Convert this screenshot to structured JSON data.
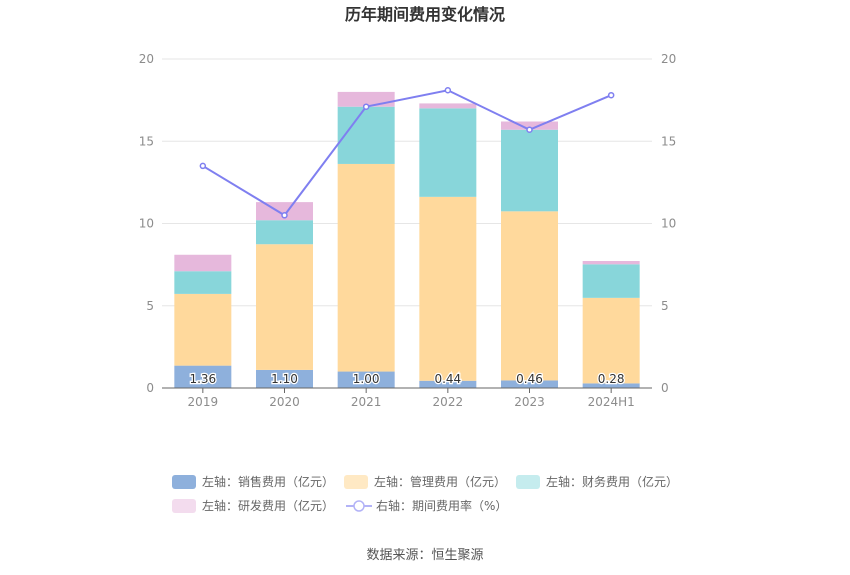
{
  "chart_data": {
    "type": "bar",
    "title": "历年期间费用变化情况",
    "categories": [
      "2019",
      "2020",
      "2021",
      "2022",
      "2023",
      "2024H1"
    ],
    "y_left": {
      "min": 0,
      "max": 20,
      "ticks": [
        "0",
        "5",
        "10",
        "15",
        "20"
      ]
    },
    "y_right": {
      "min": 0,
      "max": 20,
      "ticks": [
        "0",
        "5",
        "10",
        "15",
        "20"
      ]
    },
    "grid": true,
    "stacked": true,
    "series": [
      {
        "name": "左轴：销售费用（亿元）",
        "axis": "left",
        "color": "#8eb0dc",
        "values": [
          1.36,
          1.1,
          1.0,
          0.44,
          0.46,
          0.28
        ],
        "labels": [
          "1.36",
          "1.10",
          "1.00",
          "0.44",
          "0.46",
          "0.28"
        ]
      },
      {
        "name": "左轴：管理费用（亿元）",
        "axis": "left",
        "color": "#ffd99c",
        "values": [
          4.36,
          7.64,
          12.62,
          11.18,
          10.28,
          5.2
        ]
      },
      {
        "name": "左轴：财务费用（亿元）",
        "axis": "left",
        "color": "#88d6da",
        "values": [
          1.38,
          1.46,
          3.48,
          5.38,
          4.96,
          2.04
        ]
      },
      {
        "name": "左轴：研发费用（亿元）",
        "axis": "left",
        "color": "#e6b8dc",
        "values": [
          1.0,
          1.1,
          0.9,
          0.3,
          0.5,
          0.2
        ]
      }
    ],
    "line": {
      "name": "右轴：期间费用率（%）",
      "axis": "right",
      "color": "#7f7ff0",
      "values": [
        13.5,
        10.5,
        17.1,
        18.1,
        15.7,
        17.8
      ]
    },
    "legend_position": "bottom",
    "source": "数据来源：恒生聚源"
  }
}
